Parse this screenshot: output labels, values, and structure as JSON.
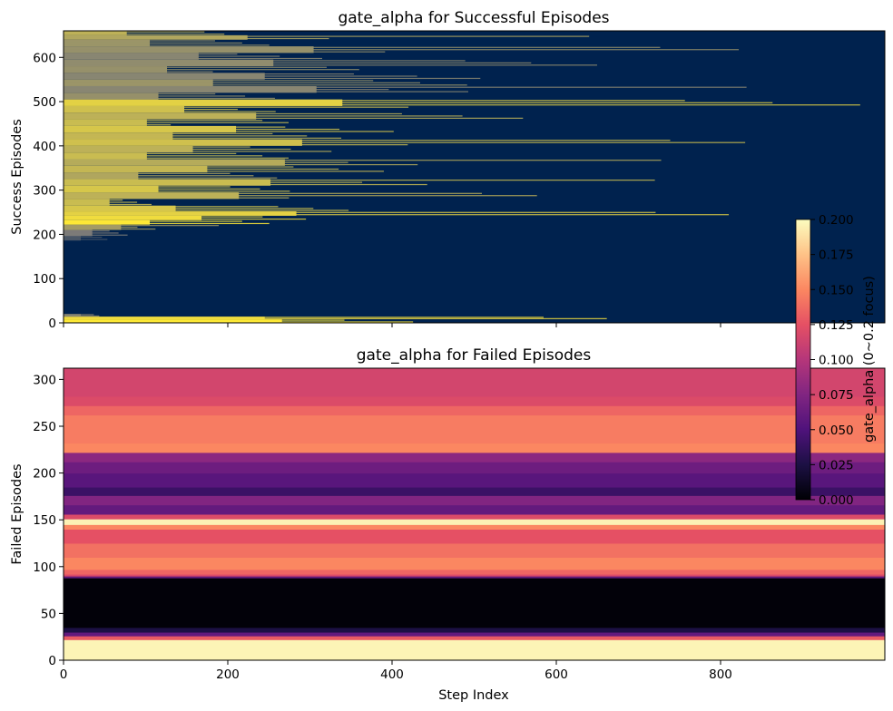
{
  "chart_data": [
    {
      "type": "heatmap",
      "title": "gate_alpha for Successful Episodes",
      "xlabel": "",
      "ylabel": "Success Episodes",
      "xlim": [
        0,
        1000
      ],
      "ylim": [
        0,
        660
      ],
      "xticks": [
        0,
        200,
        400,
        600,
        800
      ],
      "yticks": [
        0,
        100,
        200,
        300,
        400,
        500,
        600
      ],
      "colormap": "cividis",
      "colors": {
        "background": "#00224e",
        "high": "#fde737",
        "mid": "#7c7b78"
      },
      "rows": [
        {
          "y0": 0,
          "y1": 8,
          "length": 760,
          "value": 1.0
        },
        {
          "y0": 8,
          "y1": 14,
          "length": 700,
          "value": 0.95
        },
        {
          "y0": 14,
          "y1": 20,
          "length": 60,
          "value": 0.55
        },
        {
          "y0": 20,
          "y1": 30,
          "length": 0,
          "value": 0.25
        },
        {
          "y0": 186,
          "y1": 196,
          "length": 60,
          "value": 0.3
        },
        {
          "y0": 196,
          "y1": 210,
          "length": 100,
          "value": 0.5
        },
        {
          "y0": 210,
          "y1": 222,
          "length": 200,
          "value": 0.65
        },
        {
          "y0": 222,
          "y1": 232,
          "length": 300,
          "value": 1.0
        },
        {
          "y0": 232,
          "y1": 242,
          "length": 480,
          "value": 0.95
        },
        {
          "y0": 242,
          "y1": 252,
          "length": 810,
          "value": 0.9
        },
        {
          "y0": 252,
          "y1": 265,
          "length": 390,
          "value": 0.85
        },
        {
          "y0": 265,
          "y1": 280,
          "length": 160,
          "value": 0.8
        },
        {
          "y0": 280,
          "y1": 295,
          "length": 610,
          "value": 0.75
        },
        {
          "y0": 295,
          "y1": 310,
          "length": 330,
          "value": 0.85
        },
        {
          "y0": 310,
          "y1": 325,
          "length": 720,
          "value": 0.8
        },
        {
          "y0": 325,
          "y1": 340,
          "length": 260,
          "value": 0.7
        },
        {
          "y0": 340,
          "y1": 355,
          "length": 500,
          "value": 0.78
        },
        {
          "y0": 355,
          "y1": 370,
          "length": 770,
          "value": 0.72
        },
        {
          "y0": 370,
          "y1": 385,
          "length": 290,
          "value": 0.8
        },
        {
          "y0": 385,
          "y1": 400,
          "length": 450,
          "value": 0.75
        },
        {
          "y0": 400,
          "y1": 415,
          "length": 830,
          "value": 0.82
        },
        {
          "y0": 415,
          "y1": 430,
          "length": 380,
          "value": 0.78
        },
        {
          "y0": 430,
          "y1": 445,
          "length": 600,
          "value": 0.85
        },
        {
          "y0": 445,
          "y1": 460,
          "length": 290,
          "value": 0.8
        },
        {
          "y0": 460,
          "y1": 475,
          "length": 670,
          "value": 0.75
        },
        {
          "y0": 475,
          "y1": 490,
          "length": 420,
          "value": 0.82
        },
        {
          "y0": 490,
          "y1": 505,
          "length": 970,
          "value": 0.9
        },
        {
          "y0": 505,
          "y1": 520,
          "length": 330,
          "value": 0.6
        },
        {
          "y0": 520,
          "y1": 535,
          "length": 880,
          "value": 0.55
        },
        {
          "y0": 535,
          "y1": 550,
          "length": 520,
          "value": 0.62
        },
        {
          "y0": 550,
          "y1": 565,
          "length": 700,
          "value": 0.55
        },
        {
          "y0": 565,
          "y1": 580,
          "length": 360,
          "value": 0.6
        },
        {
          "y0": 580,
          "y1": 595,
          "length": 730,
          "value": 0.58
        },
        {
          "y0": 595,
          "y1": 610,
          "length": 470,
          "value": 0.55
        },
        {
          "y0": 610,
          "y1": 625,
          "length": 870,
          "value": 0.6
        },
        {
          "y0": 625,
          "y1": 640,
          "length": 300,
          "value": 0.62
        },
        {
          "y0": 640,
          "y1": 650,
          "length": 640,
          "value": 0.7
        },
        {
          "y0": 650,
          "y1": 660,
          "length": 220,
          "value": 0.75
        }
      ]
    },
    {
      "type": "heatmap",
      "title": "gate_alpha for Failed Episodes",
      "xlabel": "Step Index",
      "ylabel": "Failed Episodes",
      "xlim": [
        0,
        1000
      ],
      "ylim": [
        0,
        312
      ],
      "xticks": [
        0,
        200,
        400,
        600,
        800
      ],
      "yticks": [
        0,
        50,
        100,
        150,
        200,
        250,
        300
      ],
      "colormap": "magma",
      "value_range": [
        0.0,
        0.2
      ],
      "bands": [
        {
          "y0": 0,
          "y1": 22,
          "value": 0.196
        },
        {
          "y0": 22,
          "y1": 26,
          "value": 0.13
        },
        {
          "y0": 26,
          "y1": 30,
          "value": 0.06
        },
        {
          "y0": 30,
          "y1": 35,
          "value": 0.025
        },
        {
          "y0": 35,
          "y1": 88,
          "value": 0.002
        },
        {
          "y0": 88,
          "y1": 90,
          "value": 0.06
        },
        {
          "y0": 90,
          "y1": 92,
          "value": 0.12
        },
        {
          "y0": 92,
          "y1": 97,
          "value": 0.135
        },
        {
          "y0": 97,
          "y1": 110,
          "value": 0.15
        },
        {
          "y0": 110,
          "y1": 125,
          "value": 0.14
        },
        {
          "y0": 125,
          "y1": 140,
          "value": 0.125
        },
        {
          "y0": 140,
          "y1": 145,
          "value": 0.15
        },
        {
          "y0": 145,
          "y1": 151,
          "value": 0.195
        },
        {
          "y0": 151,
          "y1": 156,
          "value": 0.12
        },
        {
          "y0": 156,
          "y1": 166,
          "value": 0.06
        },
        {
          "y0": 166,
          "y1": 176,
          "value": 0.075
        },
        {
          "y0": 176,
          "y1": 185,
          "value": 0.04
        },
        {
          "y0": 185,
          "y1": 200,
          "value": 0.055
        },
        {
          "y0": 200,
          "y1": 212,
          "value": 0.065
        },
        {
          "y0": 212,
          "y1": 222,
          "value": 0.08
        },
        {
          "y0": 222,
          "y1": 232,
          "value": 0.15
        },
        {
          "y0": 232,
          "y1": 262,
          "value": 0.145
        },
        {
          "y0": 262,
          "y1": 272,
          "value": 0.135
        },
        {
          "y0": 272,
          "y1": 282,
          "value": 0.12
        },
        {
          "y0": 282,
          "y1": 312,
          "value": 0.115
        }
      ]
    },
    {
      "type": "colorbar",
      "colormap": "magma",
      "label": "gate_alpha (0~0.2 focus)",
      "range": [
        0.0,
        0.2
      ],
      "ticks": [
        "0.000",
        "0.025",
        "0.050",
        "0.075",
        "0.100",
        "0.125",
        "0.150",
        "0.175",
        "0.200"
      ]
    }
  ]
}
